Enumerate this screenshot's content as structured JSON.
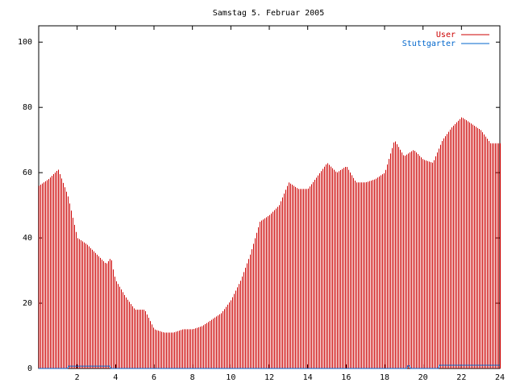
{
  "chart_data": {
    "type": "bar",
    "title": "Samstag 5. Februar 2005",
    "xlabel": "",
    "ylabel": "",
    "xlim": [
      0,
      24
    ],
    "ylim": [
      0,
      105
    ],
    "x_ticks": [
      2,
      4,
      6,
      8,
      10,
      12,
      14,
      16,
      18,
      20,
      22,
      24
    ],
    "y_ticks": [
      0,
      20,
      40,
      60,
      80,
      100
    ],
    "grid": false,
    "legend_position": "top-right",
    "series": [
      {
        "name": "User",
        "color": "#cc0000",
        "x": [
          0.0,
          0.5,
          1.0,
          1.25,
          1.5,
          2.0,
          2.5,
          3.0,
          3.5,
          3.75,
          3.9,
          4.0,
          4.5,
          5.0,
          5.5,
          6.0,
          6.5,
          7.0,
          7.5,
          8.0,
          8.5,
          9.0,
          9.5,
          10.0,
          10.5,
          11.0,
          11.5,
          12.0,
          12.5,
          13.0,
          13.5,
          14.0,
          14.5,
          15.0,
          15.5,
          16.0,
          16.5,
          17.0,
          17.5,
          18.0,
          18.5,
          19.0,
          19.5,
          20.0,
          20.5,
          21.0,
          21.5,
          22.0,
          22.5,
          23.0,
          23.5,
          24.0
        ],
        "values": [
          56,
          58,
          61,
          57,
          53,
          40,
          38,
          35,
          32,
          34,
          29,
          27,
          22,
          18,
          18,
          12,
          11,
          11,
          12,
          12,
          13,
          15,
          17,
          21,
          27,
          35,
          45,
          47,
          50,
          57,
          55,
          55,
          59,
          63,
          60,
          62,
          57,
          57,
          58,
          60,
          70,
          65,
          67,
          64,
          63,
          70,
          74,
          77,
          75,
          73,
          69,
          69
        ]
      },
      {
        "name": "Stuttgarter",
        "color": "#0066cc",
        "x": [
          0.0,
          1.5,
          1.55,
          3.7,
          3.75,
          19.15,
          19.2,
          19.3,
          19.35,
          20.8,
          20.85,
          24.0
        ],
        "values": [
          0,
          0,
          0.7,
          0.7,
          0,
          0,
          0.8,
          0.8,
          0,
          0,
          1,
          1
        ]
      }
    ]
  }
}
